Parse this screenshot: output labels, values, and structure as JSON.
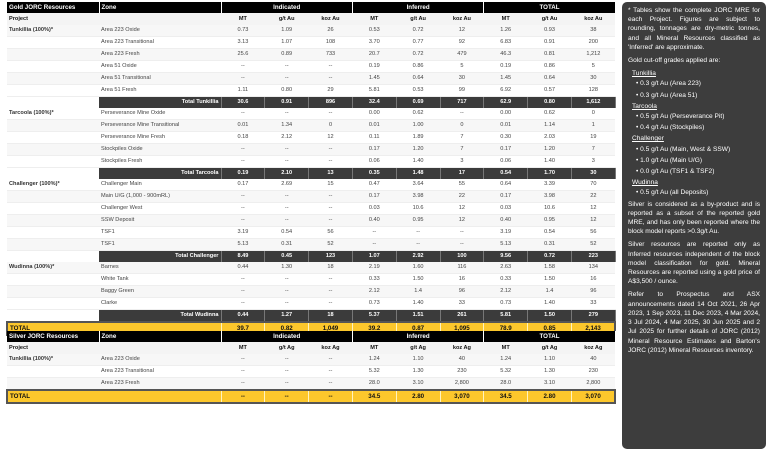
{
  "gold": {
    "title": "Gold JORC Resources",
    "zone_header": "Zone",
    "groups": [
      "Indicated",
      "Inferred",
      "TOTAL"
    ],
    "project_label": "Project",
    "units": [
      "MT",
      "g/t Au",
      "koz Au"
    ],
    "projects": [
      {
        "name": "Tunkillia (100%)*",
        "rows": [
          {
            "zone": "Area 223 Oxide",
            "values": [
              "0.73",
              "1.09",
              "26",
              "0.53",
              "0.72",
              "12",
              "1.26",
              "0.93",
              "38"
            ]
          },
          {
            "zone": "Area 223 Transitional",
            "values": [
              "3.13",
              "1.07",
              "108",
              "3.70",
              "0.77",
              "92",
              "6.83",
              "0.91",
              "200"
            ]
          },
          {
            "zone": "Area 223 Fresh",
            "values": [
              "25.6",
              "0.89",
              "733",
              "20.7",
              "0.72",
              "479",
              "46.3",
              "0.81",
              "1,212"
            ]
          },
          {
            "zone": "Area 51 Oxide",
            "values": [
              "--",
              "--",
              "--",
              "0.19",
              "0.86",
              "5",
              "0.19",
              "0.86",
              "5"
            ]
          },
          {
            "zone": "Area 51 Transitional",
            "values": [
              "--",
              "--",
              "--",
              "1.45",
              "0.64",
              "30",
              "1.45",
              "0.64",
              "30"
            ]
          },
          {
            "zone": "Area 51 Fresh",
            "values": [
              "1.11",
              "0.80",
              "29",
              "5.81",
              "0.53",
              "99",
              "6.92",
              "0.57",
              "128"
            ]
          }
        ],
        "total": {
          "label": "Total Tunkillia",
          "values": [
            "30.6",
            "0.91",
            "896",
            "32.4",
            "0.69",
            "717",
            "62.9",
            "0.80",
            "1,612"
          ]
        }
      },
      {
        "name": "Tarcoola (100%)*",
        "rows": [
          {
            "zone": "Perseverance Mine Oxide",
            "values": [
              "--",
              "--",
              "--",
              "0.00",
              "0.62",
              "--",
              "0.00",
              "0.62",
              "0"
            ]
          },
          {
            "zone": "Perseverance Mine Transitional",
            "values": [
              "0.01",
              "1.34",
              "0",
              "0.01",
              "1.00",
              "0",
              "0.01",
              "1.14",
              "1"
            ]
          },
          {
            "zone": "Perseverance Mine Fresh",
            "values": [
              "0.18",
              "2.12",
              "12",
              "0.11",
              "1.89",
              "7",
              "0.30",
              "2.03",
              "19"
            ]
          },
          {
            "zone": "Stockpiles Oxide",
            "values": [
              "--",
              "--",
              "--",
              "0.17",
              "1.20",
              "7",
              "0.17",
              "1.20",
              "7"
            ]
          },
          {
            "zone": "Stockpiles Fresh",
            "values": [
              "--",
              "--",
              "--",
              "0.06",
              "1.40",
              "3",
              "0.06",
              "1.40",
              "3"
            ]
          }
        ],
        "total": {
          "label": "Total Tarcoola",
          "values": [
            "0.19",
            "2.10",
            "13",
            "0.35",
            "1.48",
            "17",
            "0.54",
            "1.70",
            "30"
          ]
        }
      },
      {
        "name": "Challenger (100%)*",
        "rows": [
          {
            "zone": "Challenger Main",
            "values": [
              "0.17",
              "2.69",
              "15",
              "0.47",
              "3.64",
              "55",
              "0.64",
              "3.39",
              "70"
            ]
          },
          {
            "zone": "Main U/G (1,000 - 900mRL)",
            "values": [
              "--",
              "--",
              "--",
              "0.17",
              "3.98",
              "22",
              "0.17",
              "3.98",
              "22"
            ]
          },
          {
            "zone": "Challenger West",
            "values": [
              "--",
              "--",
              "--",
              "0.03",
              "10.6",
              "12",
              "0.03",
              "10.6",
              "12"
            ]
          },
          {
            "zone": "SSW Deposit",
            "values": [
              "--",
              "--",
              "--",
              "0.40",
              "0.95",
              "12",
              "0.40",
              "0.95",
              "12"
            ]
          },
          {
            "zone": "TSF1",
            "values": [
              "3.19",
              "0.54",
              "56",
              "--",
              "--",
              "--",
              "3.19",
              "0.54",
              "56"
            ]
          },
          {
            "zone": "TSF1",
            "values": [
              "5.13",
              "0.31",
              "52",
              "--",
              "--",
              "--",
              "5.13",
              "0.31",
              "52"
            ]
          }
        ],
        "total": {
          "label": "Total Challenger",
          "values": [
            "8.49",
            "0.45",
            "123",
            "1.07",
            "2.92",
            "100",
            "9.56",
            "0.72",
            "223"
          ]
        }
      },
      {
        "name": "Wudinna (100%)*",
        "rows": [
          {
            "zone": "Barnes",
            "values": [
              "0.44",
              "1.30",
              "18",
              "2.19",
              "1.60",
              "116",
              "2.63",
              "1.58",
              "134"
            ]
          },
          {
            "zone": "White Tank",
            "values": [
              "--",
              "--",
              "--",
              "0.33",
              "1.50",
              "16",
              "0.33",
              "1.50",
              "16"
            ]
          },
          {
            "zone": "Baggy Green",
            "values": [
              "--",
              "--",
              "--",
              "2.12",
              "1.4",
              "96",
              "2.12",
              "1.4",
              "96"
            ]
          },
          {
            "zone": "Clarke",
            "values": [
              "--",
              "--",
              "--",
              "0.73",
              "1.40",
              "33",
              "0.73",
              "1.40",
              "33"
            ]
          }
        ],
        "total": {
          "label": "Total Wudinna",
          "values": [
            "0.44",
            "1.27",
            "18",
            "5.37",
            "1.51",
            "261",
            "5.81",
            "1.50",
            "279"
          ]
        }
      }
    ],
    "grand_total": {
      "label": "TOTAL",
      "values": [
        "39.7",
        "0.82",
        "1,049",
        "39.2",
        "0.87",
        "1,095",
        "78.9",
        "0.85",
        "2,143"
      ]
    }
  },
  "silver": {
    "title": "Silver JORC Resources",
    "zone_header": "Zone",
    "groups": [
      "Indicated",
      "Inferred",
      "TOTAL"
    ],
    "project_label": "Project",
    "units": [
      "MT",
      "g/t Ag",
      "koz Ag"
    ],
    "projects": [
      {
        "name": "Tunkillia (100%)*",
        "rows": [
          {
            "zone": "Area 223 Oxide",
            "values": [
              "--",
              "--",
              "--",
              "1.24",
              "1.10",
              "40",
              "1.24",
              "1.10",
              "40"
            ]
          },
          {
            "zone": "Area 223 Transitional",
            "values": [
              "--",
              "--",
              "--",
              "5.32",
              "1.30",
              "230",
              "5.32",
              "1.30",
              "230"
            ]
          },
          {
            "zone": "Area 223 Fresh",
            "values": [
              "--",
              "--",
              "--",
              "28.0",
              "3.10",
              "2,800",
              "28.0",
              "3.10",
              "2,800"
            ]
          }
        ]
      }
    ],
    "grand_total": {
      "label": "TOTAL",
      "values": [
        "--",
        "--",
        "--",
        "34.5",
        "2.80",
        "3,070",
        "34.5",
        "2.80",
        "3,070"
      ]
    }
  },
  "notes": {
    "intro": "* Tables show the complete JORC MRE for each Project. Figures are subject to rounding, tonnages are dry-metric tonnes, and all Mineral Resources classified as 'Inferred' are approximate.",
    "cutoff_heading": "Gold cut-off grades applied are:",
    "cutoffs": [
      {
        "project": "Tunkillia",
        "items": [
          "0.3 g/t Au (Area 223)",
          "0.3 g/t Au (Area 51)"
        ]
      },
      {
        "project": "Tarcoola",
        "items": [
          "0.5 g/t Au (Perseverance Pit)",
          "0.4 g/t Au (Stockpiles)"
        ]
      },
      {
        "project": "Challenger",
        "items": [
          "0.5 g/t Au (Main, West & SSW)",
          "1.0 g/t Au (Main U/G)",
          "0.0 g/t Au (TSF1 & TSF2)"
        ]
      },
      {
        "project": "Wudinna",
        "items": [
          "0.5 g/t Au (all Deposits)"
        ]
      }
    ],
    "silver_note": "Silver is considered as a by-product and is reported as a subset of the reported gold MRE, and has only been reported where the block model reports >0.3g/t Au.",
    "inferred_note": "Silver resources are reported only as Inferred resources independent of the block model classification for gold. Mineral Resources are reported using a gold price of A$3,500 / ounce.",
    "refer_note": "Refer to Prospectus and ASX announcements dated 14 Oct 2021, 26 Apr 2023, 1 Sep 2023, 11 Dec 2023, 4 Mar 2024, 3 Jul 2024, 4 Mar 2025, 30 Jun 2025 and 2 Jul 2025 for further details of JORC (2012) Mineral Resource Estimates and Barton's JORC (2012) Mineral Resources inventory."
  }
}
